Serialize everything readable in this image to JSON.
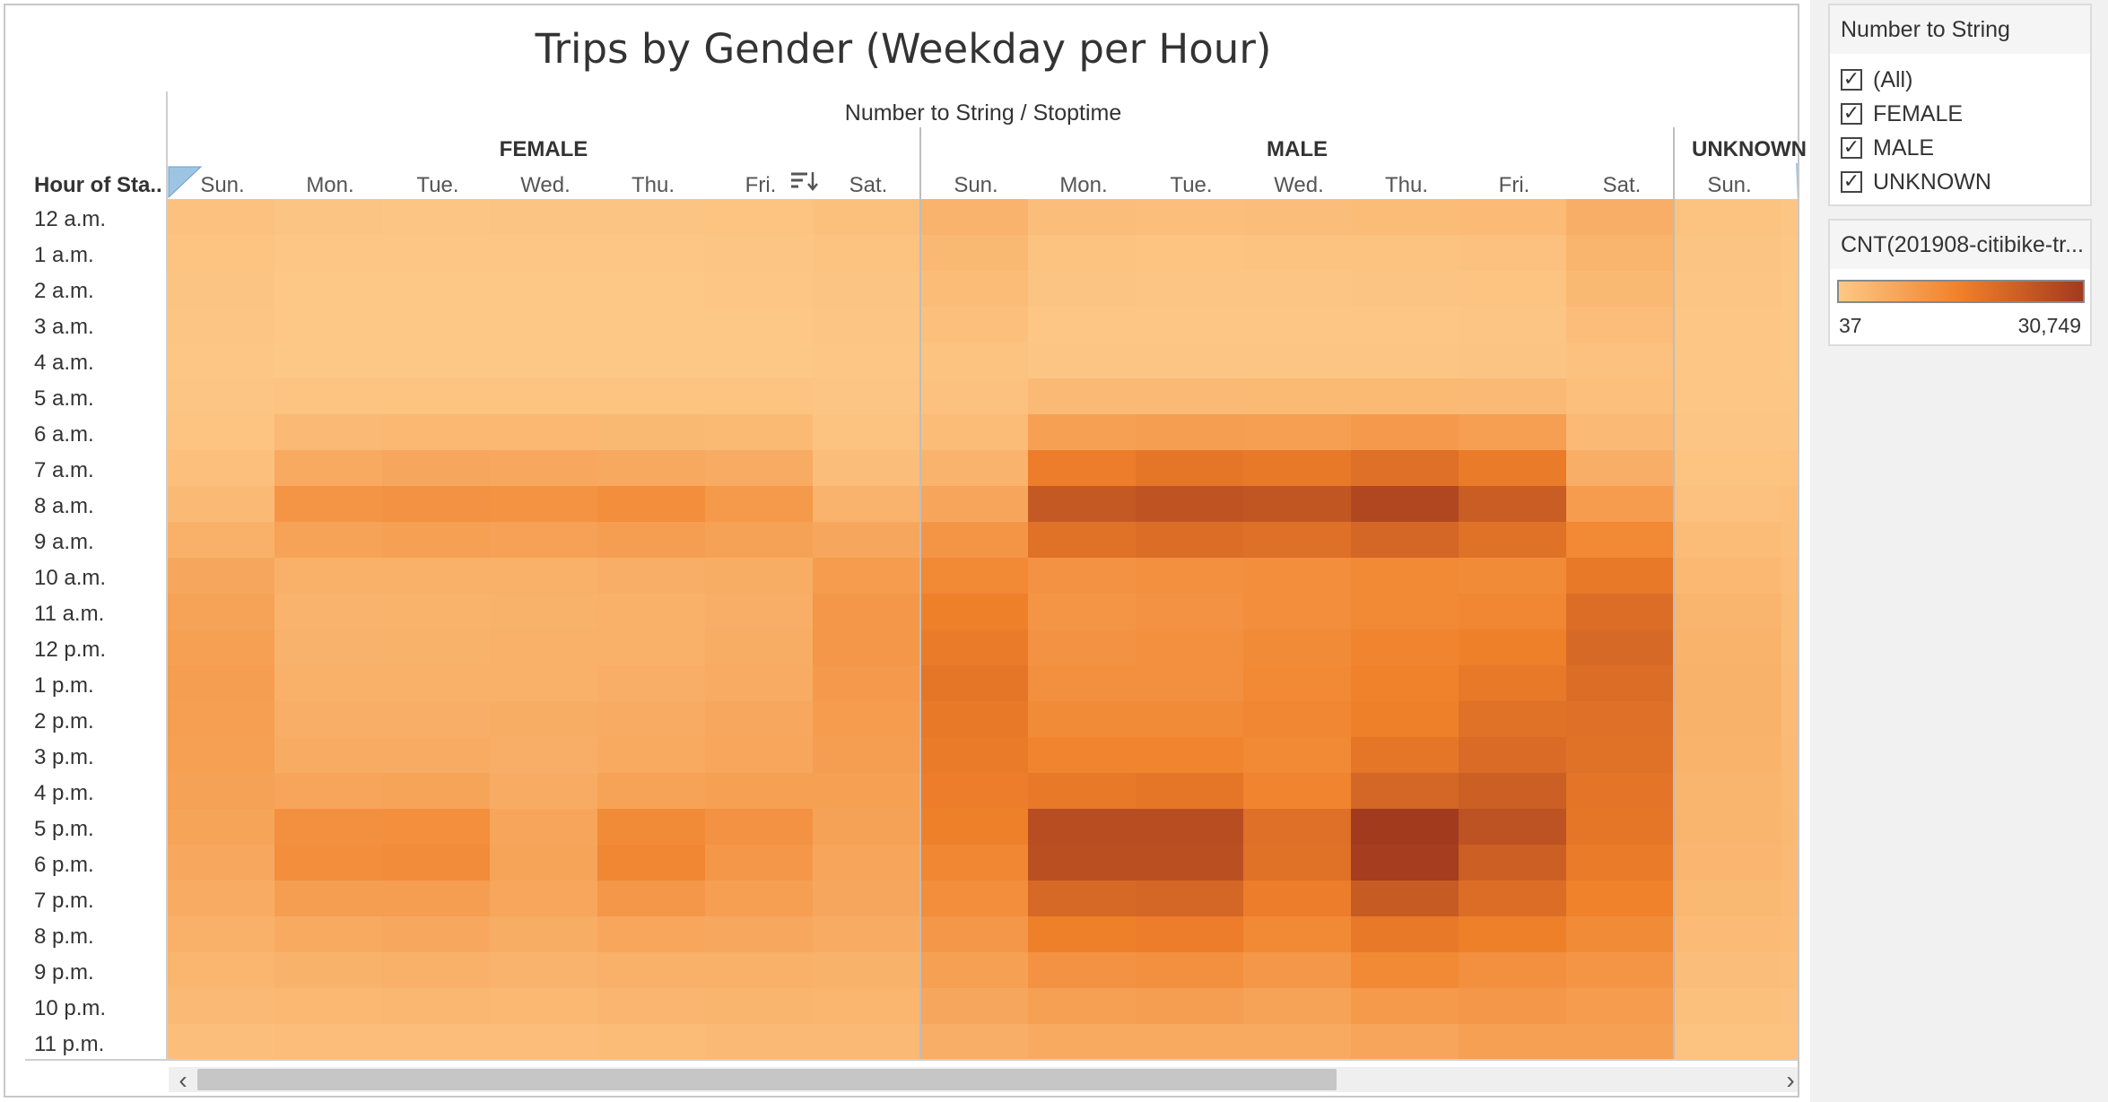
{
  "chart_data": {
    "type": "heatmap",
    "title": "Trips by Gender (Weekday per Hour)",
    "column_group_header": "Number to String  /  Stoptime",
    "row_header": "Hour of Sta..",
    "groups": [
      "FEMALE",
      "MALE",
      "UNKNOWN"
    ],
    "days": [
      "Sun.",
      "Mon.",
      "Tue.",
      "Wed.",
      "Thu.",
      "Fri.",
      "Sat."
    ],
    "hours": [
      "12 a.m.",
      "1 a.m.",
      "2 a.m.",
      "3 a.m.",
      "4 a.m.",
      "5 a.m.",
      "6 a.m.",
      "7 a.m.",
      "8 a.m.",
      "9 a.m.",
      "10 a.m.",
      "11 a.m.",
      "12 p.m.",
      "1 p.m.",
      "2 p.m.",
      "3 p.m.",
      "4 p.m.",
      "5 p.m.",
      "6 p.m.",
      "7 p.m.",
      "8 p.m.",
      "9 p.m.",
      "10 p.m.",
      "11 p.m."
    ],
    "color_scale": {
      "min": 37,
      "max": 30749,
      "colors": [
        "#fdc887",
        "#f0802a",
        "#a23a1e"
      ]
    },
    "values": {
      "FEMALE": [
        [
          1500,
          800,
          700,
          800,
          900,
          1000,
          1700
        ],
        [
          1100,
          500,
          400,
          500,
          500,
          600,
          1200
        ],
        [
          800,
          300,
          300,
          300,
          300,
          400,
          900
        ],
        [
          600,
          200,
          200,
          200,
          200,
          300,
          600
        ],
        [
          500,
          300,
          300,
          300,
          300,
          300,
          500
        ],
        [
          600,
          1000,
          1100,
          1000,
          1000,
          1000,
          700
        ],
        [
          1000,
          3200,
          3500,
          3400,
          3300,
          3100,
          1200
        ],
        [
          1800,
          6500,
          7000,
          6800,
          6700,
          6200,
          2200
        ],
        [
          3000,
          11000,
          11500,
          11200,
          12500,
          10000,
          4500
        ],
        [
          5000,
          8000,
          8500,
          8300,
          9000,
          8200,
          7000
        ],
        [
          7000,
          5000,
          5200,
          5000,
          5500,
          5800,
          9500
        ],
        [
          8000,
          4500,
          4600,
          4800,
          5000,
          5500,
          10500
        ],
        [
          8500,
          4700,
          4800,
          5000,
          5200,
          5800,
          10500
        ],
        [
          9000,
          5000,
          5000,
          5200,
          5500,
          6200,
          9800
        ],
        [
          8800,
          5500,
          5500,
          5800,
          6000,
          6800,
          9500
        ],
        [
          8500,
          6000,
          6000,
          5500,
          6500,
          7200,
          9000
        ],
        [
          8200,
          7500,
          7800,
          6000,
          8000,
          8500,
          8500
        ],
        [
          7800,
          12000,
          12200,
          7500,
          13000,
          11500,
          8200
        ],
        [
          6800,
          12500,
          12800,
          7800,
          14000,
          10500,
          7500
        ],
        [
          6000,
          9000,
          9200,
          7200,
          10500,
          8800,
          7000
        ],
        [
          5000,
          6500,
          6800,
          5800,
          7200,
          6800,
          6000
        ],
        [
          4000,
          4800,
          4900,
          4500,
          5200,
          5200,
          4800
        ],
        [
          3000,
          3500,
          3600,
          3400,
          3900,
          4200,
          4000
        ],
        [
          2000,
          2300,
          2400,
          2300,
          2600,
          3200,
          3200
        ]
      ],
      "MALE": [
        [
          4500,
          2200,
          2000,
          2200,
          2500,
          2800,
          5500
        ],
        [
          3300,
          1300,
          1100,
          1200,
          1300,
          1600,
          4200
        ],
        [
          2500,
          800,
          700,
          700,
          800,
          1000,
          3300
        ],
        [
          1800,
          500,
          500,
          500,
          500,
          700,
          2400
        ],
        [
          1200,
          700,
          700,
          700,
          700,
          800,
          1600
        ],
        [
          1500,
          3000,
          3200,
          3100,
          3100,
          3000,
          1800
        ],
        [
          2500,
          8500,
          9000,
          8800,
          9800,
          8800,
          3000
        ],
        [
          4500,
          16000,
          17500,
          17000,
          19000,
          16500,
          5500
        ],
        [
          7500,
          24000,
          25000,
          24500,
          28000,
          23000,
          9500
        ],
        [
          11000,
          18500,
          19500,
          19000,
          21000,
          18500,
          13500
        ],
        [
          13500,
          11500,
          12000,
          12500,
          13500,
          13000,
          17000
        ],
        [
          15500,
          11000,
          11500,
          12500,
          13500,
          14000,
          19500
        ],
        [
          16500,
          11500,
          12000,
          13000,
          14500,
          15500,
          20500
        ],
        [
          17500,
          12000,
          12000,
          13500,
          15000,
          17000,
          19500
        ],
        [
          17000,
          13000,
          13000,
          14000,
          15500,
          18500,
          19000
        ],
        [
          16500,
          14500,
          14500,
          13500,
          17500,
          20000,
          18500
        ],
        [
          16000,
          17000,
          17500,
          14500,
          21000,
          22500,
          18000
        ],
        [
          15500,
          26500,
          26500,
          19000,
          30749,
          25500,
          17500
        ],
        [
          14000,
          26000,
          26000,
          18500,
          30000,
          22500,
          16500
        ],
        [
          12500,
          20500,
          21000,
          16000,
          23500,
          19500,
          15000
        ],
        [
          10500,
          15500,
          16000,
          13500,
          17000,
          15500,
          13000
        ],
        [
          8500,
          11500,
          12000,
          10500,
          13500,
          12000,
          11000
        ],
        [
          7000,
          8500,
          9000,
          8000,
          10000,
          10500,
          9500
        ],
        [
          5500,
          6500,
          6500,
          6500,
          7500,
          8500,
          8500
        ]
      ],
      "UNKNOWN": [
        [
          1200,
          600
        ],
        [
          900,
          400
        ],
        [
          700,
          300
        ],
        [
          500,
          200
        ],
        [
          400,
          200
        ],
        [
          400,
          400
        ],
        [
          600,
          700
        ],
        [
          1000,
          1200
        ],
        [
          1500,
          1800
        ],
        [
          2500,
          2000
        ],
        [
          3500,
          2300
        ],
        [
          4200,
          2500
        ],
        [
          4600,
          2700
        ],
        [
          4800,
          2800
        ],
        [
          4800,
          2900
        ],
        [
          4600,
          3000
        ],
        [
          4400,
          3100
        ],
        [
          4200,
          3300
        ],
        [
          3800,
          3200
        ],
        [
          3300,
          2900
        ],
        [
          2800,
          2500
        ],
        [
          2200,
          2000
        ],
        [
          1700,
          1600
        ],
        [
          1300,
          1200
        ]
      ]
    }
  },
  "scroll": {
    "left_arrow": "‹",
    "right_arrow": "›"
  },
  "filter": {
    "title": "Number to String",
    "items": [
      {
        "label": "(All)",
        "checked": true
      },
      {
        "label": "FEMALE",
        "checked": true
      },
      {
        "label": "MALE",
        "checked": true
      },
      {
        "label": "UNKNOWN",
        "checked": true
      }
    ],
    "check_glyph": "✓"
  },
  "legend": {
    "title": "CNT(201908-citibike-tr...",
    "min_label": "37",
    "max_label": "30,749"
  },
  "icons": {
    "sort": "sort-descending-icon"
  }
}
